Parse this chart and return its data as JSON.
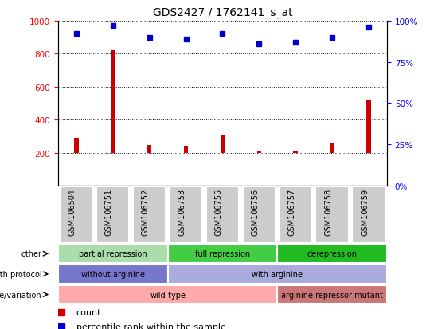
{
  "title": "GDS2427 / 1762141_s_at",
  "samples": [
    "GSM106504",
    "GSM106751",
    "GSM106752",
    "GSM106753",
    "GSM106755",
    "GSM106756",
    "GSM106757",
    "GSM106758",
    "GSM106759"
  ],
  "counts": [
    290,
    820,
    245,
    240,
    305,
    205,
    205,
    255,
    520
  ],
  "percentile_ranks": [
    92,
    97,
    90,
    89,
    92,
    86,
    87,
    90,
    96
  ],
  "ylim_left": [
    0,
    1000
  ],
  "ylim_right": [
    0,
    100
  ],
  "yticks_left": [
    200,
    400,
    600,
    800,
    1000
  ],
  "yticks_right": [
    0,
    25,
    50,
    75,
    100
  ],
  "bar_color": "#cc0000",
  "scatter_color": "#0000cc",
  "bar_baseline": 200,
  "annotation_rows": [
    {
      "label": "other",
      "segments": [
        {
          "text": "partial repression",
          "start": 0,
          "end": 3,
          "color": "#aaddaa"
        },
        {
          "text": "full repression",
          "start": 3,
          "end": 6,
          "color": "#44cc44"
        },
        {
          "text": "derepression",
          "start": 6,
          "end": 9,
          "color": "#22bb22"
        }
      ]
    },
    {
      "label": "growth protocol",
      "segments": [
        {
          "text": "without arginine",
          "start": 0,
          "end": 3,
          "color": "#7777cc"
        },
        {
          "text": "with arginine",
          "start": 3,
          "end": 9,
          "color": "#aaaadd"
        }
      ]
    },
    {
      "label": "genotype/variation",
      "segments": [
        {
          "text": "wild-type",
          "start": 0,
          "end": 6,
          "color": "#ffaaaa"
        },
        {
          "text": "arginine repressor mutant",
          "start": 6,
          "end": 9,
          "color": "#cc7777"
        }
      ]
    }
  ]
}
